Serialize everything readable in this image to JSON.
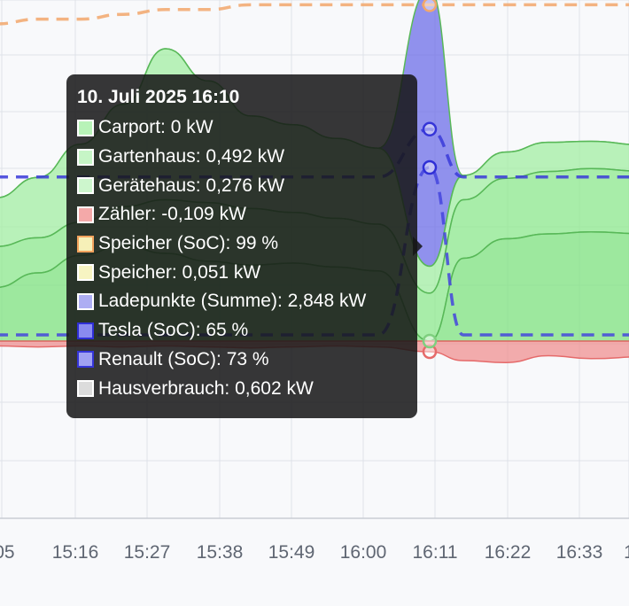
{
  "chart_data": {
    "type": "area",
    "x_ticks": [
      ":05",
      "15:16",
      "15:27",
      "15:38",
      "15:49",
      "16:00",
      "16:11",
      "16:22",
      "16:33",
      "1"
    ],
    "active_x": "16:11",
    "series": [
      {
        "name": "Carport",
        "unit": "kW",
        "color": "#7fe27f",
        "values": [
          0.55,
          0.7,
          0.88,
          0.98,
          0.9,
          0.82,
          0.78,
          0.8,
          0.76,
          0.72,
          0,
          0.85,
          1.05,
          1.1,
          1.12,
          1.1
        ]
      },
      {
        "name": "Gartenhaus",
        "unit": "kW",
        "color": "#8ee88e",
        "values": [
          0.42,
          0.36,
          0.34,
          0.4,
          0.55,
          0.6,
          0.58,
          0.52,
          0.5,
          0.48,
          0.492,
          0.6,
          0.62,
          0.64,
          0.65,
          0.64
        ]
      },
      {
        "name": "Gerätehaus",
        "unit": "kW",
        "color": "#a3eda3",
        "values": [
          0.5,
          0.62,
          0.8,
          1.05,
          1.55,
          1.25,
          0.95,
          0.9,
          0.82,
          0.78,
          0.276,
          0.25,
          0.27,
          0.3,
          0.28,
          0.27
        ]
      },
      {
        "name": "Ladepunkte (Summe)",
        "unit": "kW",
        "color": "#6d6ee8",
        "values": [
          0,
          0,
          0,
          0,
          0,
          0,
          0,
          0,
          0,
          0,
          2.848,
          0,
          0,
          0,
          0,
          0
        ]
      },
      {
        "name": "Zähler",
        "unit": "kW",
        "color": "#f08a8a",
        "values": [
          -0.05,
          -0.06,
          -0.05,
          -0.06,
          -0.05,
          -0.06,
          -0.07,
          -0.06,
          -0.05,
          -0.06,
          -0.109,
          -0.2,
          -0.22,
          -0.15,
          -0.18,
          -0.16
        ]
      }
    ],
    "soc_series": [
      {
        "name": "Speicher (SoC)",
        "unit": "%",
        "color": "#f2a76b",
        "values": [
          95,
          96,
          96,
          97,
          98,
          98,
          99,
          99,
          99,
          99,
          99,
          99,
          99,
          99,
          99,
          99
        ]
      },
      {
        "name": "Tesla (SoC)",
        "unit": "%",
        "color": "#4444dd",
        "values": [
          30,
          30,
          30,
          30,
          30,
          30,
          30,
          30,
          30,
          30,
          65,
          30,
          30,
          30,
          30,
          30
        ]
      },
      {
        "name": "Renault (SoC)",
        "unit": "%",
        "color": "#3a3ad8",
        "values": [
          63,
          63,
          63,
          63,
          63,
          63,
          63,
          63,
          63,
          63,
          73,
          63,
          63,
          63,
          63,
          63
        ]
      }
    ],
    "grid": true
  },
  "tooltip": {
    "title": "10. Juli 2025 16:10",
    "rows": [
      {
        "label": "Carport: 0 kW",
        "color": "#b8f3b8",
        "border": "#ffffff"
      },
      {
        "label": "Gartenhaus: 0,492 kW",
        "color": "#c6f5c6",
        "border": "#ffffff"
      },
      {
        "label": "Gerätehaus: 0,276 kW",
        "color": "#cdf6cd",
        "border": "#ffffff"
      },
      {
        "label": "Zähler: -0,109 kW",
        "color": "#f4a9a9",
        "border": "#ffffff"
      },
      {
        "label": "Speicher (SoC): 99 %",
        "color": "#f6f0b8",
        "border": "#f3a35e"
      },
      {
        "label": "Speicher: 0,051 kW",
        "color": "#f7f4c2",
        "border": "#ffffff"
      },
      {
        "label": "Ladepunkte (Summe): 2,848 kW",
        "color": "#adaef3",
        "border": "#ffffff"
      },
      {
        "label": "Tesla (SoC): 65 %",
        "color": "#8a8bf0",
        "border": "#2f2fd6"
      },
      {
        "label": "Renault (SoC): 73 %",
        "color": "#a0a1f2",
        "border": "#3535d8"
      },
      {
        "label": "Hausverbrauch: 0,602 kW",
        "color": "#dcdcdc",
        "border": "#ffffff"
      }
    ]
  }
}
